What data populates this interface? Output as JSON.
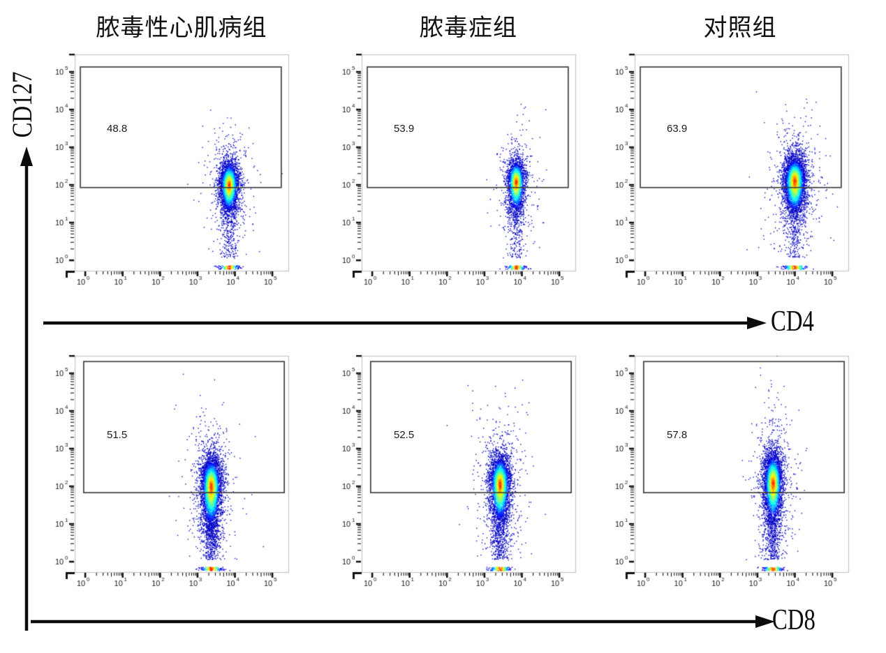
{
  "figure": {
    "y_axis_label": "CD127"
  },
  "chart_data": {
    "type": "scatter",
    "subtype": "flow-cytometry-pseudocolor-density",
    "x_scale": "log10",
    "y_scale": "log10",
    "tick_exponents": [
      0,
      1,
      2,
      3,
      4,
      5
    ],
    "x_range_log": [
      -0.3,
      5.45
    ],
    "y_range_log": [
      -0.3,
      5.55
    ],
    "grid": false,
    "columns": [
      "脓毒性心肌病组",
      "脓毒症组",
      "对照组"
    ],
    "y_axis_label": "CD127",
    "rows": [
      {
        "x_label": "CD4",
        "gate_log": {
          "x0": -0.13,
          "x1": 5.24,
          "y0": 1.93,
          "y1": 5.13
        },
        "panels": [
          {
            "group": "脓毒性心肌病组",
            "gate_percent": "48.8",
            "cluster": {
              "cx": 3.85,
              "cy": 2.0,
              "sx": 0.13,
              "sy_up": 0.32,
              "sy_down": 0.4,
              "n": 3000,
              "tail_n": 240,
              "tail_y_max": 1.7,
              "baseline_n": 130,
              "outliers": [
                [
                  3.8,
                  3.78
                ]
              ],
              "seed": 101
            }
          },
          {
            "group": "脓毒症组",
            "gate_percent": "53.9",
            "cluster": {
              "cx": 3.85,
              "cy": 2.08,
              "sx": 0.12,
              "sy_up": 0.3,
              "sy_down": 0.44,
              "n": 2500,
              "tail_n": 190,
              "tail_y_max": 1.5,
              "baseline_n": 115,
              "outliers": [
                [
                  3.72,
                  3.35
                ],
                [
                  3.95,
                  3.45
                ]
              ],
              "seed": 202
            }
          },
          {
            "group": "对照组",
            "gate_percent": "63.9",
            "cluster": {
              "cx": 4.0,
              "cy": 2.1,
              "sx": 0.15,
              "sy_up": 0.34,
              "sy_down": 0.48,
              "n": 4200,
              "tail_n": 210,
              "tail_y_max": 1.6,
              "baseline_n": 130,
              "outliers": [
                [
                  4.3,
                  3.4
                ]
              ],
              "seed": 303
            }
          }
        ]
      },
      {
        "x_label": "CD8",
        "gate_log": {
          "x0": -0.04,
          "x1": 5.32,
          "y0": 1.83,
          "y1": 5.31
        },
        "panels": [
          {
            "group": "脓毒性心肌病组",
            "gate_percent": "51.5",
            "cluster": {
              "cx": 3.37,
              "cy": 2.0,
              "sx": 0.14,
              "sy_up": 0.4,
              "sy_down": 0.6,
              "n": 4200,
              "tail_n": 430,
              "tail_y_max": 1.3,
              "baseline_n": 150,
              "outliers": [
                [
                  3.5,
                  3.72
                ],
                [
                  3.3,
                  3.58
                ]
              ],
              "seed": 404
            }
          },
          {
            "group": "脓毒症组",
            "gate_percent": "52.5",
            "cluster": {
              "cx": 3.42,
              "cy": 2.05,
              "sx": 0.14,
              "sy_up": 0.4,
              "sy_down": 0.56,
              "n": 3800,
              "tail_n": 370,
              "tail_y_max": 1.3,
              "baseline_n": 140,
              "outliers": [
                [
                  3.62,
                  3.9
                ],
                [
                  3.8,
                  3.6
                ]
              ],
              "seed": 505
            }
          },
          {
            "group": "对照组",
            "gate_percent": "57.8",
            "cluster": {
              "cx": 3.42,
              "cy": 2.08,
              "sx": 0.13,
              "sy_up": 0.42,
              "sy_down": 0.56,
              "n": 3800,
              "tail_n": 310,
              "tail_y_max": 1.2,
              "baseline_n": 140,
              "outliers": [
                [
                  3.55,
                  4.48
                ],
                [
                  3.4,
                  3.62
                ]
              ],
              "seed": 606
            }
          }
        ]
      }
    ]
  },
  "style": {
    "background": "#ffffff",
    "frame_color": "#c4c4c4",
    "gate_color": "#3f3f3f",
    "tick_color": "#111111",
    "label_color": "#111111",
    "pct_color": "#1a1a1a",
    "arrow_color": "#0c0c0c",
    "outlier_color": "#3a55c8",
    "density_colormap": "jet"
  }
}
